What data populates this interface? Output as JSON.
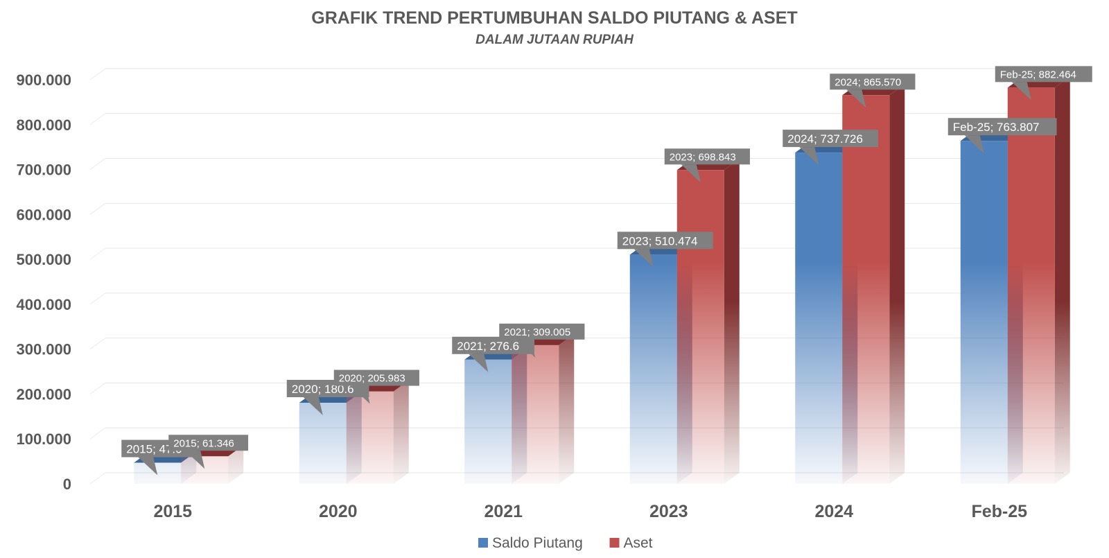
{
  "chart_data": {
    "type": "bar",
    "title": "GRAFIK TREND PERTUMBUHAN SALDO PIUTANG & ASET",
    "subtitle": "DALAM JUTAAN RUPIAH",
    "categories": [
      "2015",
      "2020",
      "2021",
      "2023",
      "2024",
      "Feb-25"
    ],
    "series": [
      {
        "name": "Saldo Piutang",
        "color": "#4f81bd",
        "side_color": "#3a6596",
        "values": [
          47000,
          180600,
          276650,
          510474,
          737726,
          763807
        ],
        "labels": [
          "2015; 47.0",
          "2020; 180.6",
          "2021; 276.6",
          "2023; 510.474",
          "2024; 737.726",
          "Feb-25; 763.807"
        ]
      },
      {
        "name": "Aset",
        "color": "#c0504d",
        "side_color": "#7f2f2f",
        "values": [
          61346,
          205983,
          309005,
          698843,
          865570,
          882464
        ],
        "labels": [
          "2015; 61.346",
          "2020; 205.983",
          "2021; 309.005",
          "2023; 698.843",
          "2024; 865.570",
          "Feb-25; 882.464"
        ]
      }
    ],
    "y_ticks": [
      "0",
      "100.000",
      "200.000",
      "300.000",
      "400.000",
      "500.000",
      "600.000",
      "700.000",
      "800.000",
      "900.000"
    ],
    "ylim": [
      0,
      900000
    ],
    "xlabel": "",
    "ylabel": "",
    "grid": true,
    "legend_position": "bottom",
    "style": "3d-clustered-column-with-gradient-fade"
  }
}
